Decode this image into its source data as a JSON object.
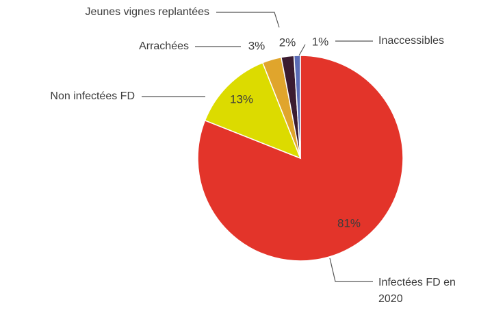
{
  "chart_data": {
    "type": "pie",
    "categories": [
      "Infectées FD en 2020",
      "Non infectées FD",
      "Arrachées",
      "Jeunes vignes replantées",
      "Inaccessibles"
    ],
    "values": [
      81,
      13,
      3,
      2,
      1
    ],
    "value_labels": [
      "81%",
      "13%",
      "3%",
      "2%",
      "1%"
    ],
    "colors": [
      "#e3342a",
      "#dcdb00",
      "#e0a52c",
      "#3b1b30",
      "#5b6bb5"
    ]
  }
}
